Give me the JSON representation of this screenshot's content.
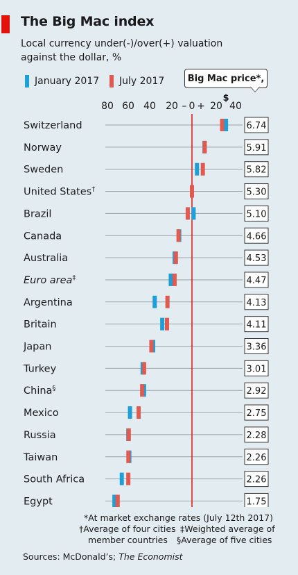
{
  "header": {
    "title": "The Big Mac index",
    "subtitle": "Local currency under(-)/over(+) valuation against the dollar, %"
  },
  "legend": {
    "jan_label": "January 2017",
    "jul_label": "July 2017",
    "price_box_label": "Big Mac price*, $"
  },
  "colors": {
    "jan": "#1d9fd8",
    "jul": "#e05a4f",
    "axis_line": "#e3120b",
    "background": "#e3ecf1",
    "accent": "#e3120b"
  },
  "axis": {
    "tick_labels": [
      "80",
      "60",
      "40",
      "20",
      "–",
      "0",
      "+",
      "20",
      "40"
    ]
  },
  "chart_data": {
    "type": "dot",
    "title": "The Big Mac index",
    "subtitle": "Local currency under(-)/over(+) valuation against the dollar, %",
    "xlim": [
      -80,
      40
    ],
    "grid": true,
    "series": [
      {
        "name": "January 2017",
        "color": "#1d9fd8"
      },
      {
        "name": "July 2017",
        "color": "#e05a4f"
      }
    ],
    "rows": [
      {
        "country": "Switzerland",
        "jan": 30.7,
        "jul": 27.2,
        "price": "6.74",
        "mark": "",
        "italic": false
      },
      {
        "country": "Norway",
        "jan": 11.3,
        "jul": 11.5,
        "price": "5.91",
        "mark": "",
        "italic": false
      },
      {
        "country": "Sweden",
        "jan": 4.5,
        "jul": 9.8,
        "price": "5.82",
        "mark": "",
        "italic": false
      },
      {
        "country": "United States",
        "jan": 0,
        "jul": 0,
        "price": "5.30",
        "mark": "†",
        "italic": false
      },
      {
        "country": "Brazil",
        "jan": 1.5,
        "jul": -3.8,
        "price": "5.10",
        "mark": "",
        "italic": false
      },
      {
        "country": "Canada",
        "jan": -11.5,
        "jul": -12.1,
        "price": "4.66",
        "mark": "",
        "italic": false
      },
      {
        "country": "Australia",
        "jan": -15.6,
        "jul": -14.5,
        "price": "4.53",
        "mark": "",
        "italic": false
      },
      {
        "country": "Euro area",
        "jan": -19.1,
        "jul": -15.7,
        "price": "4.47",
        "mark": "‡",
        "italic": true
      },
      {
        "country": "Argentina",
        "jan": -33.6,
        "jul": -22.1,
        "price": "4.13",
        "mark": "",
        "italic": false
      },
      {
        "country": "Britain",
        "jan": -26.8,
        "jul": -22.5,
        "price": "4.11",
        "mark": "",
        "italic": false
      },
      {
        "country": "Japan",
        "jan": -35.0,
        "jul": -36.6,
        "price": "3.36",
        "mark": "",
        "italic": false
      },
      {
        "country": "Turkey",
        "jan": -44.5,
        "jul": -43.2,
        "price": "3.01",
        "mark": "",
        "italic": false
      },
      {
        "country": "China",
        "jan": -43.2,
        "jul": -44.9,
        "price": "2.92",
        "mark": "§",
        "italic": false
      },
      {
        "country": "Mexico",
        "jan": -55.9,
        "jul": -48.1,
        "price": "2.75",
        "mark": "",
        "italic": false
      },
      {
        "country": "Russia",
        "jan": -57.4,
        "jul": -57.0,
        "price": "2.28",
        "mark": "",
        "italic": false
      },
      {
        "country": "Taiwan",
        "jan": -56.5,
        "jul": -57.3,
        "price": "2.26",
        "mark": "",
        "italic": false
      },
      {
        "country": "South Africa",
        "jan": -63.3,
        "jul": -57.4,
        "price": "2.26",
        "mark": "",
        "italic": false
      },
      {
        "country": "Egypt",
        "jan": -69.9,
        "jul": -67.0,
        "price": "1.75",
        "mark": "",
        "italic": false
      }
    ]
  },
  "footnotes": {
    "line1": "*At market exchange rates (July 12th 2017)",
    "line2a": "†Average of four cities",
    "line2b": "‡Weighted average of",
    "line3a": "member countries",
    "line3b": "§Average of five cities"
  },
  "source": {
    "prefix": "Sources: McDonald’s; ",
    "italic": "The Economist"
  }
}
